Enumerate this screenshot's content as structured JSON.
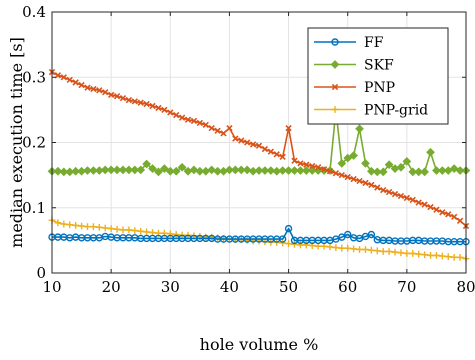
{
  "chart_data": {
    "type": "line",
    "title": "",
    "xlabel": "hole volume %",
    "ylabel": "median execution time [s]",
    "xlim": [
      10,
      80
    ],
    "ylim": [
      0,
      0.4
    ],
    "xticks": [
      10,
      20,
      30,
      40,
      50,
      60,
      70,
      80
    ],
    "yticks": [
      0,
      0.1,
      0.2,
      0.3,
      0.4
    ],
    "xtick_labels": [
      "10",
      "20",
      "30",
      "40",
      "50",
      "60",
      "70",
      "80"
    ],
    "ytick_labels": [
      "0",
      "0.1",
      "0.2",
      "0.3",
      "0.4"
    ],
    "grid": true,
    "legend_position": "top-right",
    "x": [
      10,
      11,
      12,
      13,
      14,
      15,
      16,
      17,
      18,
      19,
      20,
      21,
      22,
      23,
      24,
      25,
      26,
      27,
      28,
      29,
      30,
      31,
      32,
      33,
      34,
      35,
      36,
      37,
      38,
      39,
      40,
      41,
      42,
      43,
      44,
      45,
      46,
      47,
      48,
      49,
      50,
      51,
      52,
      53,
      54,
      55,
      56,
      57,
      58,
      59,
      60,
      61,
      62,
      63,
      64,
      65,
      66,
      67,
      68,
      69,
      70,
      71,
      72,
      73,
      74,
      75,
      76,
      77,
      78,
      79,
      80
    ],
    "series": [
      {
        "name": "FF",
        "color": "#0072BD",
        "marker": "circle",
        "values": [
          0.055,
          0.055,
          0.055,
          0.054,
          0.055,
          0.054,
          0.054,
          0.054,
          0.054,
          0.056,
          0.055,
          0.054,
          0.054,
          0.054,
          0.054,
          0.053,
          0.053,
          0.053,
          0.053,
          0.053,
          0.053,
          0.053,
          0.053,
          0.053,
          0.053,
          0.053,
          0.053,
          0.053,
          0.052,
          0.052,
          0.052,
          0.052,
          0.052,
          0.052,
          0.052,
          0.052,
          0.052,
          0.052,
          0.052,
          0.052,
          0.068,
          0.05,
          0.05,
          0.05,
          0.05,
          0.05,
          0.05,
          0.05,
          0.052,
          0.055,
          0.059,
          0.054,
          0.053,
          0.056,
          0.059,
          0.051,
          0.05,
          0.05,
          0.049,
          0.049,
          0.049,
          0.05,
          0.05,
          0.049,
          0.049,
          0.049,
          0.049,
          0.048,
          0.048,
          0.048,
          0.048
        ]
      },
      {
        "name": "SKF",
        "color": "#77AC30",
        "marker": "diamond",
        "values": [
          0.156,
          0.156,
          0.155,
          0.155,
          0.156,
          0.156,
          0.157,
          0.157,
          0.157,
          0.158,
          0.158,
          0.158,
          0.158,
          0.158,
          0.158,
          0.158,
          0.167,
          0.16,
          0.155,
          0.16,
          0.156,
          0.156,
          0.162,
          0.156,
          0.158,
          0.156,
          0.156,
          0.158,
          0.156,
          0.156,
          0.158,
          0.158,
          0.158,
          0.158,
          0.156,
          0.157,
          0.157,
          0.157,
          0.156,
          0.157,
          0.157,
          0.157,
          0.157,
          0.157,
          0.157,
          0.157,
          0.157,
          0.157,
          0.249,
          0.168,
          0.176,
          0.18,
          0.221,
          0.168,
          0.156,
          0.155,
          0.155,
          0.166,
          0.16,
          0.162,
          0.171,
          0.155,
          0.155,
          0.155,
          0.185,
          0.157,
          0.157,
          0.157,
          0.16,
          0.157,
          0.157
        ]
      },
      {
        "name": "PNP",
        "color": "#D95319",
        "marker": "cross",
        "values": [
          0.308,
          0.303,
          0.3,
          0.296,
          0.292,
          0.288,
          0.284,
          0.282,
          0.28,
          0.277,
          0.273,
          0.271,
          0.268,
          0.265,
          0.263,
          0.261,
          0.259,
          0.256,
          0.253,
          0.25,
          0.246,
          0.242,
          0.238,
          0.235,
          0.233,
          0.23,
          0.227,
          0.222,
          0.218,
          0.214,
          0.222,
          0.206,
          0.203,
          0.2,
          0.197,
          0.195,
          0.19,
          0.186,
          0.182,
          0.178,
          0.222,
          0.172,
          0.168,
          0.166,
          0.164,
          0.162,
          0.159,
          0.156,
          0.153,
          0.15,
          0.147,
          0.144,
          0.141,
          0.138,
          0.135,
          0.131,
          0.127,
          0.124,
          0.121,
          0.118,
          0.115,
          0.112,
          0.108,
          0.105,
          0.101,
          0.097,
          0.093,
          0.09,
          0.086,
          0.08,
          0.072
        ]
      },
      {
        "name": "PNP-grid",
        "color": "#EDB120",
        "marker": "plus",
        "values": [
          0.081,
          0.077,
          0.075,
          0.074,
          0.073,
          0.072,
          0.071,
          0.071,
          0.07,
          0.069,
          0.068,
          0.067,
          0.066,
          0.066,
          0.065,
          0.064,
          0.063,
          0.062,
          0.061,
          0.061,
          0.06,
          0.059,
          0.058,
          0.058,
          0.057,
          0.056,
          0.055,
          0.055,
          0.054,
          0.053,
          0.052,
          0.051,
          0.051,
          0.05,
          0.049,
          0.049,
          0.048,
          0.047,
          0.047,
          0.046,
          0.045,
          0.044,
          0.043,
          0.043,
          0.042,
          0.041,
          0.041,
          0.04,
          0.039,
          0.038,
          0.038,
          0.037,
          0.036,
          0.036,
          0.035,
          0.034,
          0.033,
          0.033,
          0.032,
          0.031,
          0.03,
          0.03,
          0.029,
          0.028,
          0.027,
          0.027,
          0.026,
          0.025,
          0.024,
          0.024,
          0.022
        ]
      }
    ]
  }
}
